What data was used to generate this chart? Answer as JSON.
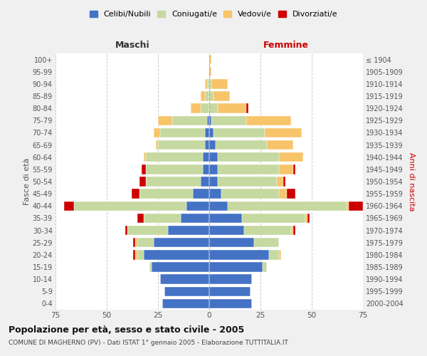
{
  "age_groups": [
    "0-4",
    "5-9",
    "10-14",
    "15-19",
    "20-24",
    "25-29",
    "30-34",
    "35-39",
    "40-44",
    "45-49",
    "50-54",
    "55-59",
    "60-64",
    "65-69",
    "70-74",
    "75-79",
    "80-84",
    "85-89",
    "90-94",
    "95-99",
    "100+"
  ],
  "birth_years": [
    "2000-2004",
    "1995-1999",
    "1990-1994",
    "1985-1989",
    "1980-1984",
    "1975-1979",
    "1970-1974",
    "1965-1969",
    "1960-1964",
    "1955-1959",
    "1950-1954",
    "1945-1949",
    "1940-1944",
    "1935-1939",
    "1930-1934",
    "1925-1929",
    "1920-1924",
    "1915-1919",
    "1910-1914",
    "1905-1909",
    "≤ 1904"
  ],
  "males": {
    "celibe": [
      23,
      22,
      24,
      28,
      32,
      27,
      20,
      14,
      11,
      8,
      4,
      3,
      3,
      2,
      2,
      1,
      0,
      0,
      0,
      0,
      0
    ],
    "coniugato": [
      0,
      0,
      0,
      1,
      3,
      8,
      20,
      18,
      55,
      26,
      27,
      28,
      28,
      23,
      22,
      17,
      4,
      2,
      1,
      0,
      0
    ],
    "vedovo": [
      0,
      0,
      0,
      0,
      1,
      1,
      0,
      0,
      0,
      0,
      0,
      0,
      1,
      1,
      3,
      7,
      5,
      2,
      1,
      0,
      0
    ],
    "divorziato": [
      0,
      0,
      0,
      0,
      1,
      1,
      1,
      3,
      5,
      4,
      3,
      2,
      0,
      0,
      0,
      0,
      0,
      0,
      0,
      0,
      0
    ]
  },
  "females": {
    "nubile": [
      21,
      20,
      21,
      26,
      29,
      22,
      17,
      16,
      9,
      6,
      4,
      4,
      4,
      3,
      2,
      1,
      0,
      0,
      0,
      0,
      0
    ],
    "coniugata": [
      0,
      0,
      0,
      2,
      5,
      12,
      23,
      31,
      58,
      28,
      29,
      30,
      30,
      25,
      25,
      17,
      4,
      2,
      1,
      0,
      0
    ],
    "vedova": [
      0,
      0,
      0,
      0,
      1,
      0,
      1,
      1,
      1,
      4,
      3,
      7,
      12,
      13,
      18,
      22,
      14,
      8,
      8,
      1,
      1
    ],
    "divorziata": [
      0,
      0,
      0,
      0,
      0,
      0,
      1,
      1,
      7,
      4,
      1,
      1,
      0,
      0,
      0,
      0,
      1,
      0,
      0,
      0,
      0
    ]
  },
  "colors": {
    "celibe": "#4472c4",
    "coniugato": "#c5d9a0",
    "vedovo": "#f8c46a",
    "divorziato": "#cc0000"
  },
  "xlim": 75,
  "title": "Popolazione per età, sesso e stato civile - 2005",
  "subtitle": "COMUNE DI MAGHERNO (PV) - Dati ISTAT 1° gennaio 2005 - Elaborazione TUTTITALIA.IT",
  "xlabel_left": "Maschi",
  "xlabel_right": "Femmine",
  "ylabel_left": "Fasce di età",
  "ylabel_right": "Anni di nascita",
  "legend_labels": [
    "Celibi/Nubili",
    "Coniugati/e",
    "Vedovi/e",
    "Divorziati/e"
  ],
  "bg_color": "#f0f0f0",
  "plot_bg_color": "#ffffff"
}
